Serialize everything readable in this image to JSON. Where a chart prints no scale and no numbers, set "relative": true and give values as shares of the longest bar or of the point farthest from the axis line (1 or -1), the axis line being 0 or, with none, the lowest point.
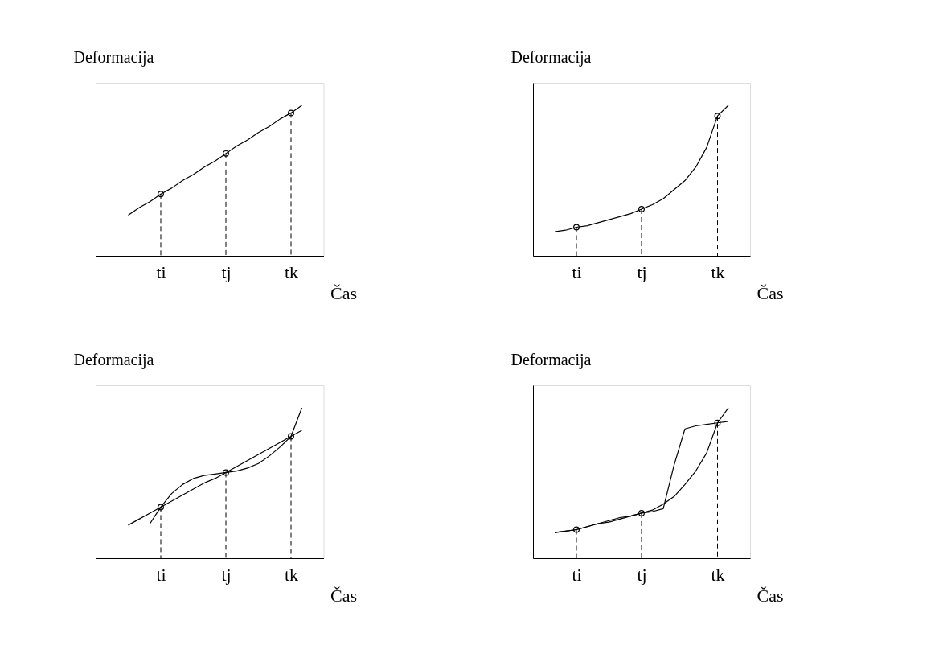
{
  "chart_data": [
    {
      "type": "line",
      "relative": true,
      "xlabel": "Čas",
      "ylabel": "Deformacija",
      "categories": [
        null,
        null,
        null,
        null,
        null,
        null,
        "ti",
        null,
        null,
        null,
        null,
        null,
        "tj",
        null,
        null,
        null,
        null,
        null,
        "tk",
        null,
        null,
        null
      ],
      "series": [
        {
          "type": "line",
          "color": "#000000",
          "values": [
            null,
            null,
            null,
            0.27,
            0.32,
            0.36,
            0.41,
            0.45,
            0.5,
            0.54,
            0.59,
            0.63,
            0.68,
            0.73,
            0.77,
            0.82,
            0.86,
            0.91,
            0.95,
            1.0,
            null,
            null
          ]
        },
        {
          "type": "scatter",
          "color": "#000000",
          "marker": "circle",
          "values": [
            null,
            null,
            null,
            null,
            null,
            null,
            0.41,
            null,
            null,
            null,
            null,
            null,
            0.68,
            null,
            null,
            null,
            null,
            null,
            0.95,
            null,
            null,
            null
          ]
        }
      ]
    },
    {
      "type": "line",
      "relative": true,
      "xlabel": "Čas",
      "ylabel": "Deformacija",
      "categories": [
        null,
        null,
        null,
        null,
        "ti",
        null,
        null,
        null,
        null,
        null,
        "tj",
        null,
        null,
        null,
        null,
        null,
        null,
        "tk",
        null,
        null,
        null
      ],
      "series": [
        {
          "type": "line",
          "color": "#000000",
          "values": [
            null,
            null,
            0.16,
            0.17,
            0.19,
            0.2,
            0.22,
            0.24,
            0.26,
            0.28,
            0.31,
            0.34,
            0.38,
            0.44,
            0.5,
            0.59,
            0.72,
            0.93,
            1.0,
            null,
            null
          ]
        },
        {
          "type": "scatter",
          "color": "#000000",
          "marker": "circle",
          "values": [
            null,
            null,
            null,
            null,
            0.19,
            null,
            null,
            null,
            null,
            null,
            0.31,
            null,
            null,
            null,
            null,
            null,
            null,
            0.93,
            null,
            null,
            null
          ]
        }
      ]
    },
    {
      "type": "line",
      "relative": true,
      "xlabel": "Čas",
      "ylabel": "Deformacija",
      "categories": [
        null,
        null,
        null,
        null,
        null,
        null,
        "ti",
        null,
        null,
        null,
        null,
        null,
        "tj",
        null,
        null,
        null,
        null,
        null,
        "tk",
        null,
        null,
        null
      ],
      "series": [
        {
          "type": "line",
          "color": "#000000",
          "values": [
            null,
            null,
            null,
            0.22,
            0.26,
            0.3,
            0.34,
            0.38,
            0.42,
            0.46,
            0.5,
            0.53,
            0.57,
            0.61,
            0.65,
            0.69,
            0.73,
            0.77,
            0.81,
            0.85,
            null,
            null
          ]
        },
        {
          "type": "line",
          "color": "#000000",
          "values": [
            null,
            null,
            null,
            null,
            null,
            0.23,
            0.34,
            0.43,
            0.49,
            0.53,
            0.55,
            0.56,
            0.57,
            0.58,
            0.6,
            0.63,
            0.68,
            0.74,
            0.81,
            1.0,
            null,
            null
          ]
        },
        {
          "type": "scatter",
          "color": "#000000",
          "marker": "circle",
          "values": [
            null,
            null,
            null,
            null,
            null,
            null,
            0.34,
            null,
            null,
            null,
            null,
            null,
            0.57,
            null,
            null,
            null,
            null,
            null,
            0.81,
            null,
            null,
            null
          ]
        }
      ]
    },
    {
      "type": "line",
      "relative": true,
      "xlabel": "Čas",
      "ylabel": "Deformacija",
      "categories": [
        null,
        null,
        null,
        null,
        "ti",
        null,
        null,
        null,
        null,
        null,
        "tj",
        null,
        null,
        null,
        null,
        null,
        null,
        "tk",
        null,
        null,
        null
      ],
      "series": [
        {
          "type": "line",
          "color": "#000000",
          "values": [
            null,
            null,
            0.17,
            0.18,
            0.19,
            0.21,
            0.23,
            0.24,
            0.26,
            0.28,
            0.3,
            0.32,
            0.36,
            0.41,
            0.49,
            0.58,
            0.7,
            0.9,
            1.0,
            null,
            null
          ]
        },
        {
          "type": "line",
          "color": "#000000",
          "values": [
            null,
            null,
            0.17,
            0.18,
            0.19,
            0.21,
            0.23,
            0.25,
            0.27,
            0.28,
            0.3,
            0.31,
            0.33,
            0.62,
            0.86,
            0.88,
            0.89,
            0.9,
            0.91,
            null,
            null
          ]
        },
        {
          "type": "scatter",
          "color": "#000000",
          "marker": "circle",
          "values": [
            null,
            null,
            null,
            null,
            0.19,
            null,
            null,
            null,
            null,
            null,
            0.3,
            null,
            null,
            null,
            null,
            null,
            null,
            0.9,
            null,
            null,
            null
          ]
        }
      ]
    }
  ]
}
